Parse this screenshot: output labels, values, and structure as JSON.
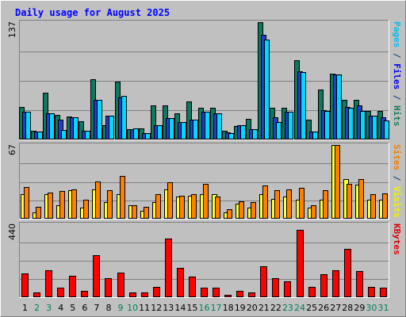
{
  "chart_data": {
    "type": "bar",
    "title": "Daily usage for August 2025",
    "categories": [
      "1",
      "2",
      "3",
      "4",
      "5",
      "6",
      "7",
      "8",
      "9",
      "10",
      "11",
      "12",
      "13",
      "14",
      "15",
      "16",
      "17",
      "18",
      "19",
      "20",
      "21",
      "22",
      "23",
      "24",
      "25",
      "26",
      "27",
      "28",
      "29",
      "30",
      "31"
    ],
    "weekend_days": [
      "2",
      "3",
      "9",
      "10",
      "16",
      "17",
      "23",
      "24",
      "30",
      "31"
    ],
    "panels": [
      {
        "id": "hits",
        "ymax_label": "137",
        "ylim": [
          0,
          137
        ],
        "legend": [
          {
            "text": "Pages",
            "color": "#00c0f0"
          },
          {
            "text": " / ",
            "color": "#004080"
          },
          {
            "text": "Files",
            "color": "#0000f0"
          },
          {
            "text": " / ",
            "color": "#004080"
          },
          {
            "text": "Hits",
            "color": "#0f7f5f"
          }
        ],
        "series": [
          {
            "name": "Hits",
            "color": "#107860",
            "values": [
              38,
              10,
              55,
              29,
              27,
              21,
              70,
              17,
              68,
              12,
              13,
              40,
              40,
              31,
              44,
              37,
              37,
              10,
              16,
              24,
              137,
              37,
              37,
              93,
              23,
              58,
              77,
              46,
              46,
              33,
              33
            ]
          },
          {
            "name": "Files",
            "color": "#2040c8",
            "values": [
              32,
              9,
              31,
              23,
              26,
              10,
              46,
              28,
              49,
              12,
              7,
              17,
              25,
              20,
              23,
              32,
              31,
              8,
              17,
              12,
              122,
              26,
              32,
              80,
              9,
              34,
              76,
              38,
              40,
              28,
              26
            ]
          },
          {
            "name": "Pages",
            "color": "#00d8ff",
            "values": [
              32,
              9,
              31,
              11,
              26,
              10,
              46,
              28,
              51,
              13,
              7,
              17,
              25,
              20,
              23,
              32,
              31,
              7,
              17,
              12,
              117,
              20,
              32,
              79,
              9,
              33,
              76,
              37,
              33,
              28,
              22
            ]
          }
        ]
      },
      {
        "id": "visits",
        "ymax_label": "67",
        "ylim": [
          0,
          67
        ],
        "legend": [
          {
            "text": "Sites",
            "color": "#f07f00"
          },
          {
            "text": " / ",
            "color": "#004080"
          },
          {
            "text": "Visits",
            "color": "#f0f000"
          }
        ],
        "series": [
          {
            "name": "Visits",
            "color": "#ffff30",
            "values": [
              22,
              6,
              22,
              12,
              26,
              10,
              27,
              15,
              22,
              12,
              7,
              15,
              27,
              20,
              21,
              22,
              22,
              6,
              14,
              10,
              22,
              18,
              20,
              17,
              10,
              17,
              67,
              36,
              31,
              17,
              17
            ]
          },
          {
            "name": "Sites",
            "color": "#ff8000",
            "values": [
              29,
              11,
              24,
              25,
              27,
              17,
              34,
              26,
              39,
              12,
              11,
              22,
              33,
              21,
              22,
              32,
              20,
              9,
              16,
              15,
              30,
              26,
              27,
              28,
              12,
              26,
              67,
              32,
              36,
              22,
              23
            ]
          }
        ]
      },
      {
        "id": "kbytes",
        "ymax_label": "440",
        "ylim": [
          0,
          440
        ],
        "legend": [
          {
            "text": "KBytes",
            "color": "#e00000"
          }
        ],
        "series": [
          {
            "name": "KBytes",
            "color": "#ff0000",
            "values": [
              145,
              28,
              163,
              59,
              130,
              38,
              253,
              115,
              148,
              28,
              28,
              60,
              354,
              178,
              125,
              58,
              58,
              15,
              40,
              27,
              188,
              115,
              95,
              406,
              62,
              137,
              162,
              292,
              160,
              63,
              57
            ]
          }
        ]
      }
    ],
    "colors": {
      "background": "#c0c0c0",
      "plot_bg": "#c0c0c0",
      "border_dark": "#808080",
      "border_light": "#ffffff",
      "grid": "#808080",
      "title": "#0000ff",
      "weekday_label": "#000000",
      "weekend_label": "#00805c"
    },
    "legend_position": "right-vertical",
    "grid": true
  }
}
